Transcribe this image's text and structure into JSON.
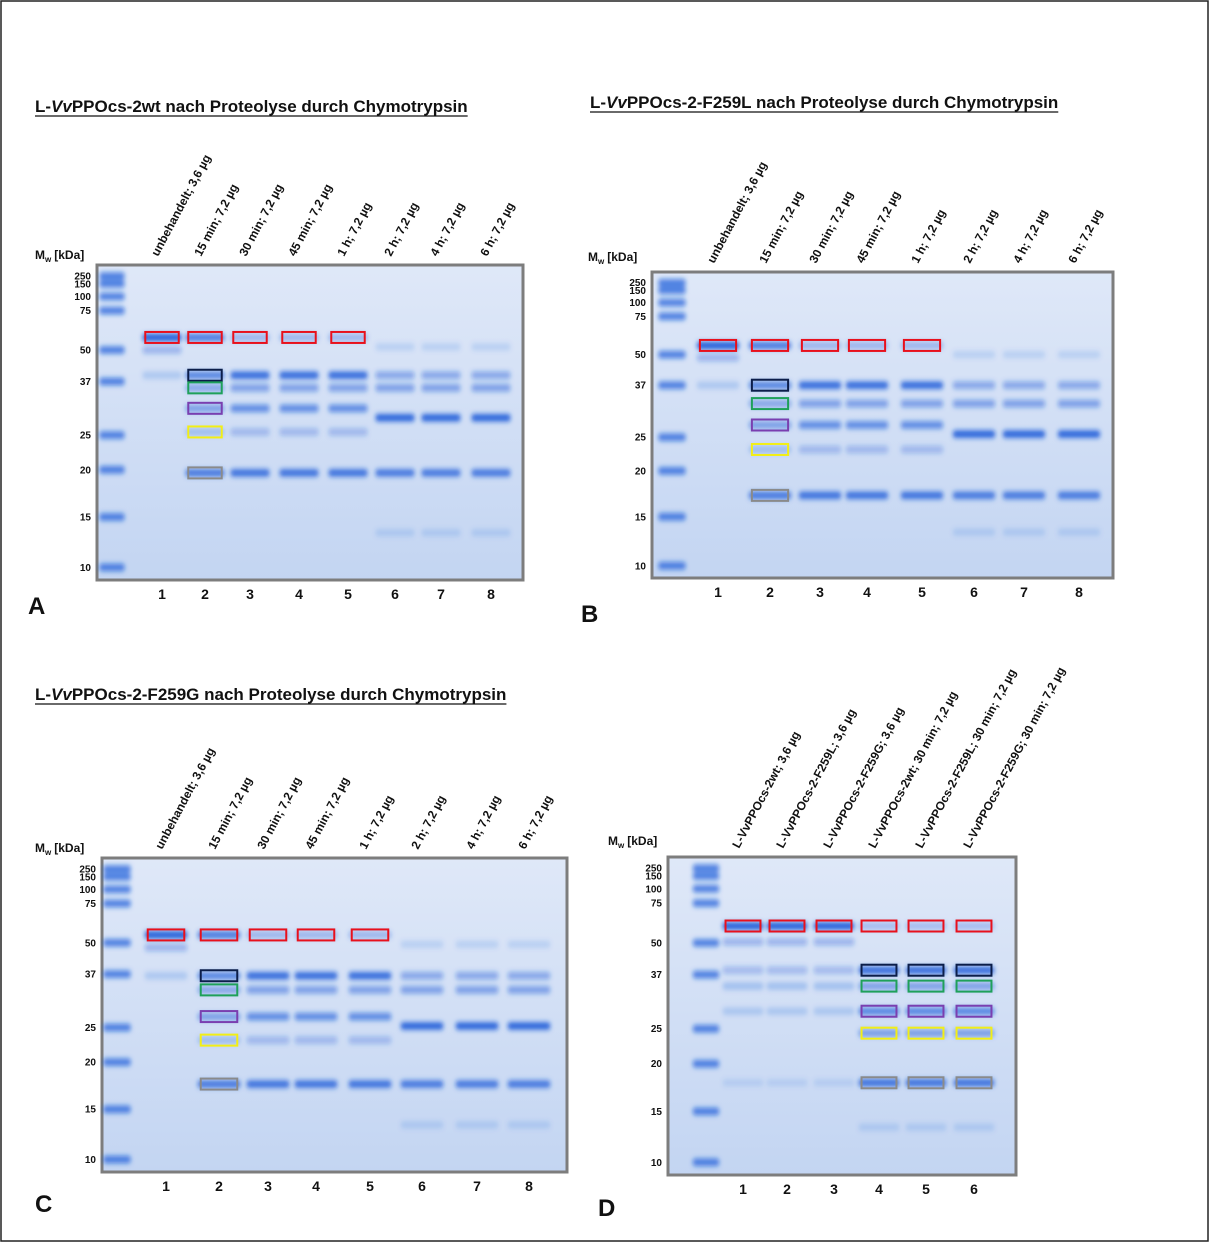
{
  "panels": [
    {
      "letter": "A",
      "title": {
        "prefix": "L-",
        "italic": "Vv",
        "suffix": "PPOcs-2wt nach Proteolyse durch Chymotrypsin"
      },
      "mw_label": {
        "main": "M",
        "sub": "w",
        "unit": "[kDa]"
      },
      "markers": [
        250,
        150,
        100,
        75,
        50,
        37,
        25,
        20,
        15,
        10
      ],
      "lane_labels": [
        "unbehandelt; 3,6 µg",
        "15 min; 7,2 µg",
        "30 min; 7,2 µg",
        "45 min; 7,2 µg",
        "1 h; 7,2 µg",
        "2 h; 7,2 µg",
        "4 h; 7,2 µg",
        "6 h; 7,2 µg"
      ],
      "lane_numbers": [
        1,
        2,
        3,
        4,
        5,
        6,
        7,
        8
      ]
    },
    {
      "letter": "B",
      "title": {
        "prefix": "L-",
        "italic": "Vv",
        "suffix": "PPOcs-2-F259L nach Proteolyse durch Chymotrypsin"
      },
      "mw_label": {
        "main": "M",
        "sub": "w",
        "unit": "[kDa]"
      },
      "markers": [
        250,
        150,
        100,
        75,
        50,
        37,
        25,
        20,
        15,
        10
      ],
      "lane_labels": [
        "unbehandelt; 3,6 µg",
        "15 min; 7,2 µg",
        "30 min; 7,2 µg",
        "45 min; 7,2 µg",
        "1 h; 7,2 µg",
        "2 h; 7,2 µg",
        "4 h; 7,2 µg",
        "6 h; 7,2 µg"
      ],
      "lane_numbers": [
        1,
        2,
        3,
        4,
        5,
        6,
        7,
        8
      ]
    },
    {
      "letter": "C",
      "title": {
        "prefix": "L-",
        "italic": "Vv",
        "suffix": "PPOcs-2-F259G nach Proteolyse durch Chymotrypsin"
      },
      "mw_label": {
        "main": "M",
        "sub": "w",
        "unit": "[kDa]"
      },
      "markers": [
        250,
        150,
        100,
        75,
        50,
        37,
        25,
        20,
        15,
        10
      ],
      "lane_labels": [
        "unbehandelt; 3,6 µg",
        "15 min; 7,2 µg",
        "30 min; 7,2 µg",
        "45 min; 7,2 µg",
        "1 h; 7,2 µg",
        "2 h; 7,2 µg",
        "4 h; 7,2 µg",
        "6 h; 7,2 µg"
      ],
      "lane_numbers": [
        1,
        2,
        3,
        4,
        5,
        6,
        7,
        8
      ]
    },
    {
      "letter": "D",
      "mw_label": {
        "main": "M",
        "sub": "w",
        "unit": "[kDa]"
      },
      "markers": [
        250,
        150,
        100,
        75,
        50,
        37,
        25,
        20,
        15,
        10
      ],
      "lane_labels": [
        "L-VvPPOcs-2wt; 3,6 µg",
        "L-VvPPOcs-2-F259L; 3,6 µg",
        "L-VvPPOcs-2-F259G; 3,6 µg",
        "L-VvPPOcs-2wt; 30 min; 7,2 µg",
        "L-VvPPOcs-2-F259L; 30 min; 7,2 µg",
        "L-VvPPOcs-2-F259G; 30 min; 7,2 µg"
      ],
      "lane_numbers": [
        1,
        2,
        3,
        4,
        5,
        6
      ]
    }
  ]
}
